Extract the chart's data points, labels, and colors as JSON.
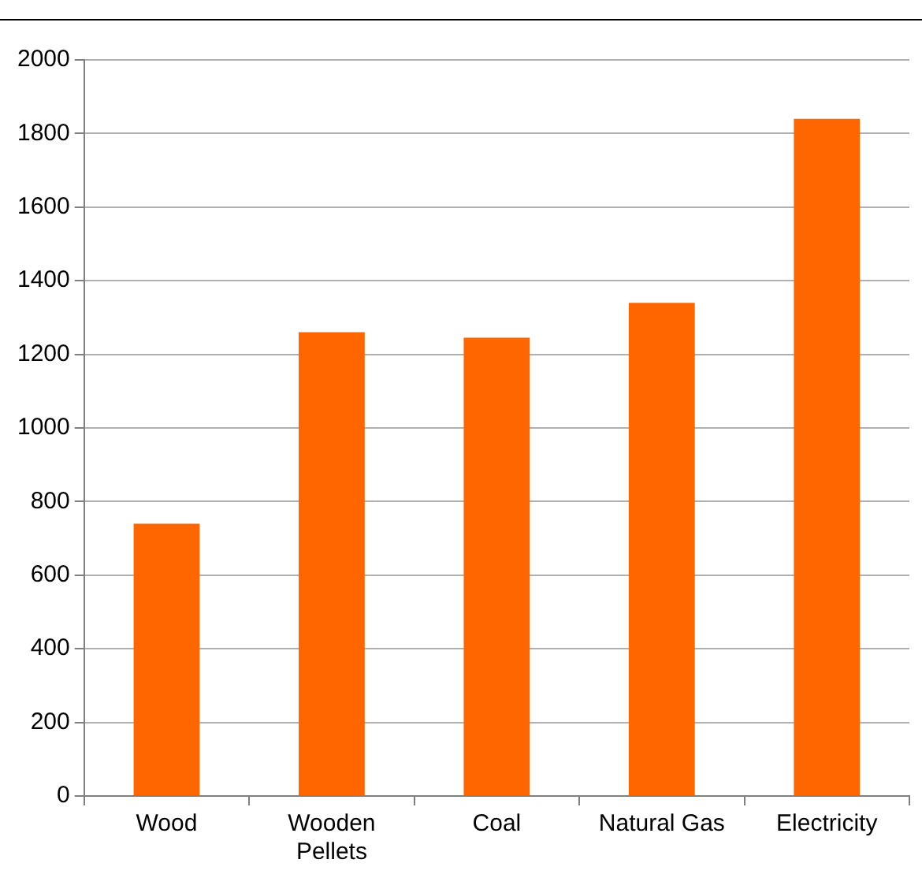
{
  "chart_data": {
    "type": "bar",
    "categories": [
      "Wood",
      "Wooden Pellets",
      "Coal",
      "Natural Gas",
      "Electricity"
    ],
    "values": [
      740,
      1260,
      1245,
      1340,
      1840
    ],
    "color": "#ff6600",
    "ylim": [
      0,
      2000
    ],
    "yticks": [
      0,
      200,
      400,
      600,
      800,
      1000,
      1200,
      1400,
      1600,
      1800,
      2000
    ],
    "grid": "y",
    "legend": false
  }
}
